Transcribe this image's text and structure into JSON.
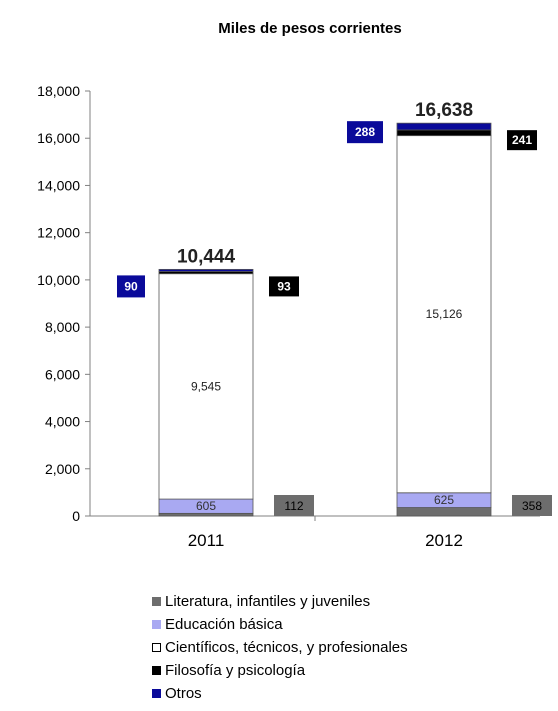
{
  "chart_data": {
    "type": "bar",
    "stacked": true,
    "title": "Miles de pesos corrientes",
    "xlabel": "",
    "ylabel": "",
    "categories": [
      "2011",
      "2012"
    ],
    "ylim": [
      0,
      18000
    ],
    "yticks": [
      0,
      2000,
      4000,
      6000,
      8000,
      10000,
      12000,
      14000,
      16000,
      18000
    ],
    "ytick_labels": [
      "0",
      "2,000",
      "4,000",
      "6,000",
      "8,000",
      "10,000",
      "12,000",
      "14,000",
      "16,000",
      "18,000"
    ],
    "grid": false,
    "legend_position": "bottom",
    "series": [
      {
        "name": "Literatura, infantiles y juveniles",
        "values": [
          112,
          358
        ],
        "labels": [
          "112",
          "358"
        ],
        "color": "#6d6d6d"
      },
      {
        "name": "Educación básica",
        "values": [
          605,
          625
        ],
        "labels": [
          "605",
          "625"
        ],
        "color": "#a9a9f2"
      },
      {
        "name": "Científicos, técnicos, y profesionales",
        "values": [
          9545,
          15126
        ],
        "labels": [
          "9,545",
          "15,126"
        ],
        "color": "#ffffff"
      },
      {
        "name": "Filosofía y psicología",
        "values": [
          93,
          241
        ],
        "labels": [
          "93",
          "241"
        ],
        "color": "#000000"
      },
      {
        "name": "Otros",
        "values": [
          90,
          288
        ],
        "labels": [
          "90",
          "288"
        ],
        "color": "#0a0a9a"
      }
    ],
    "totals": [
      10444,
      16638
    ],
    "total_labels": [
      "10,444",
      "16,638"
    ]
  }
}
